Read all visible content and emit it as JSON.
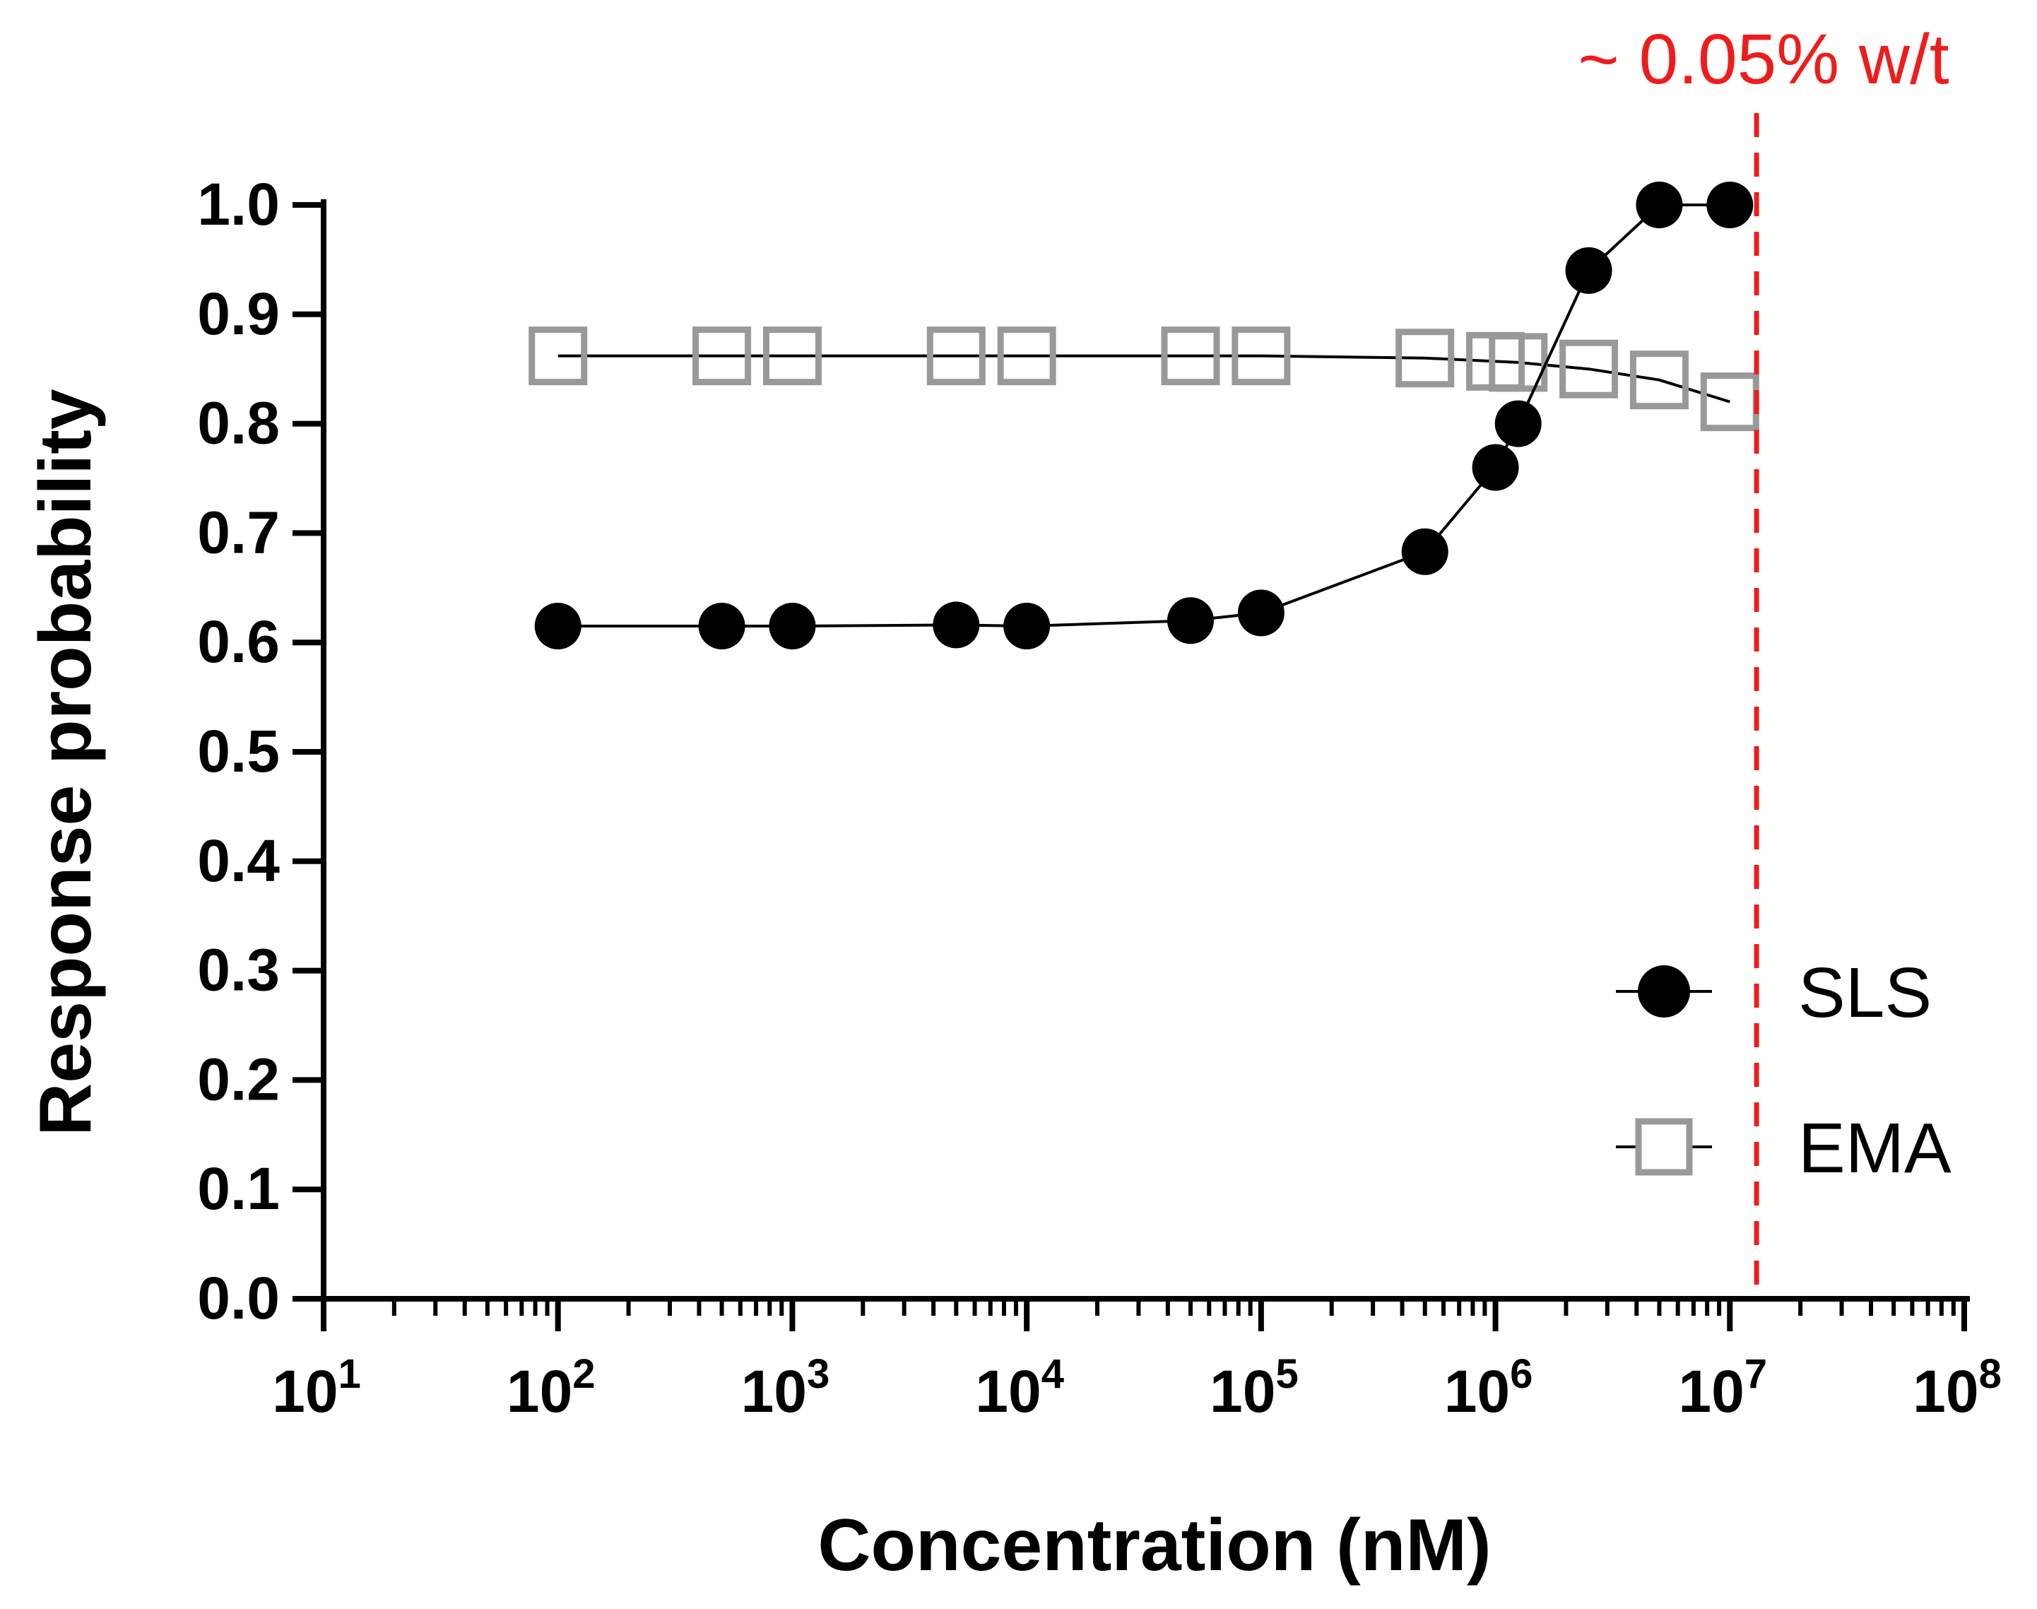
{
  "chart_data": {
    "type": "line",
    "xscale": "log10",
    "xlabel": "Concentration (nM)",
    "ylabel": "Response probability",
    "xlim": [
      10,
      100000000
    ],
    "ylim": [
      0,
      1.0
    ],
    "x_tick_exponents": [
      1,
      2,
      3,
      4,
      5,
      6,
      7,
      8
    ],
    "x_tick_base": "10",
    "y_ticks": [
      "0.0",
      "0.1",
      "0.2",
      "0.3",
      "0.4",
      "0.5",
      "0.6",
      "0.7",
      "0.8",
      "0.9",
      "1.0"
    ],
    "legend_position": "lower-right",
    "series": [
      {
        "name": "SLS",
        "marker": "filled-circle",
        "color": "#000000",
        "line_color": "#000000",
        "x": [
          100,
          500,
          1000,
          5000,
          10000,
          50000,
          100000,
          500000,
          1000000,
          1250000,
          2500000,
          5000000,
          10000000
        ],
        "y": [
          0.615,
          0.615,
          0.615,
          0.616,
          0.615,
          0.62,
          0.627,
          0.683,
          0.76,
          0.8,
          0.94,
          1.0,
          1.0
        ]
      },
      {
        "name": "EMA",
        "marker": "open-square",
        "color": "#999999",
        "line_color": "#000000",
        "x": [
          100,
          500,
          1000,
          5000,
          10000,
          50000,
          100000,
          500000,
          1000000,
          1250000,
          2500000,
          5000000,
          10000000
        ],
        "y": [
          0.862,
          0.862,
          0.862,
          0.862,
          0.862,
          0.862,
          0.862,
          0.86,
          0.857,
          0.856,
          0.85,
          0.84,
          0.82
        ]
      }
    ],
    "annotations": [
      {
        "type": "vline",
        "x": 13000000,
        "color": "#ee1c1c",
        "style": "dashed",
        "label": "~ 0.05% w/t"
      }
    ]
  }
}
